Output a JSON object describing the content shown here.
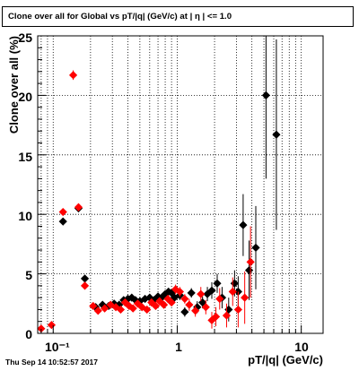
{
  "title": "Clone  over all for Global vs pT/|q| (GeV/c) at |  η | <= 1.0",
  "timestamp": "Thu Sep 14 10:52:57 2017",
  "colors": {
    "series_black": "#000000",
    "series_red": "#ff0000",
    "grid": "#000000",
    "background": "#ffffff"
  },
  "chart_data": {
    "type": "scatter",
    "title": "Clone  over all for Global vs pT/|q| (GeV/c) at |  η | <= 1.0",
    "xlabel": "pT/|q| (GeV/c)",
    "ylabel": "Clone  over all (%)",
    "xscale": "log",
    "xlim": [
      0.075,
      15
    ],
    "ylim": [
      0,
      25
    ],
    "x_tick_labels": [
      "10⁻¹",
      "1",
      "10"
    ],
    "y_tick_labels": [
      "0",
      "5",
      "10",
      "15",
      "20",
      "25"
    ],
    "grid": true,
    "series": [
      {
        "color": "#000000",
        "marker": "diamond",
        "points": [
          {
            "x": 0.12,
            "y": 9.4,
            "ey": 0.3
          },
          {
            "x": 0.16,
            "y": 10.5,
            "ey": 0.3
          },
          {
            "x": 0.18,
            "y": 4.6,
            "ey": 0.2
          },
          {
            "x": 0.22,
            "y": 2.2,
            "ey": 0.2
          },
          {
            "x": 0.25,
            "y": 2.4,
            "ey": 0.2
          },
          {
            "x": 0.28,
            "y": 2.3,
            "ey": 0.2
          },
          {
            "x": 0.31,
            "y": 2.5,
            "ey": 0.2
          },
          {
            "x": 0.34,
            "y": 2.4,
            "ey": 0.2
          },
          {
            "x": 0.37,
            "y": 2.8,
            "ey": 0.2
          },
          {
            "x": 0.4,
            "y": 2.9,
            "ey": 0.2
          },
          {
            "x": 0.43,
            "y": 3.0,
            "ey": 0.2
          },
          {
            "x": 0.46,
            "y": 2.8,
            "ey": 0.2
          },
          {
            "x": 0.5,
            "y": 2.7,
            "ey": 0.2
          },
          {
            "x": 0.55,
            "y": 2.9,
            "ey": 0.2
          },
          {
            "x": 0.6,
            "y": 3.0,
            "ey": 0.2
          },
          {
            "x": 0.65,
            "y": 2.8,
            "ey": 0.2
          },
          {
            "x": 0.7,
            "y": 3.1,
            "ey": 0.3
          },
          {
            "x": 0.75,
            "y": 3.0,
            "ey": 0.3
          },
          {
            "x": 0.8,
            "y": 3.3,
            "ey": 0.3
          },
          {
            "x": 0.85,
            "y": 3.5,
            "ey": 0.3
          },
          {
            "x": 0.9,
            "y": 3.4,
            "ey": 0.3
          },
          {
            "x": 0.95,
            "y": 3.0,
            "ey": 0.3
          },
          {
            "x": 1.05,
            "y": 3.2,
            "ey": 0.4
          },
          {
            "x": 1.15,
            "y": 1.8,
            "ey": 0.4
          },
          {
            "x": 1.3,
            "y": 3.4,
            "ey": 0.4
          },
          {
            "x": 1.45,
            "y": 2.2,
            "ey": 0.5
          },
          {
            "x": 1.6,
            "y": 2.6,
            "ey": 0.5
          },
          {
            "x": 1.75,
            "y": 3.3,
            "ey": 0.6
          },
          {
            "x": 1.9,
            "y": 3.6,
            "ey": 0.7
          },
          {
            "x": 2.1,
            "y": 4.2,
            "ey": 0.8
          },
          {
            "x": 2.3,
            "y": 3.0,
            "ey": 0.9
          },
          {
            "x": 2.6,
            "y": 2.0,
            "ey": 1.0
          },
          {
            "x": 2.9,
            "y": 4.2,
            "ey": 1.1
          },
          {
            "x": 3.1,
            "y": 3.5,
            "ey": 1.3
          },
          {
            "x": 3.4,
            "y": 9.1,
            "ey": 2.6
          },
          {
            "x": 3.8,
            "y": 5.3,
            "ey": 2.5
          },
          {
            "x": 4.3,
            "y": 7.2,
            "ey": 3.5
          },
          {
            "x": 5.2,
            "y": 20.0,
            "ey": 7.0
          },
          {
            "x": 6.3,
            "y": 16.7,
            "ey": 8.0
          }
        ]
      },
      {
        "color": "#ff0000",
        "marker": "diamond",
        "points": [
          {
            "x": 0.08,
            "y": 0.4,
            "ey": 0.1
          },
          {
            "x": 0.097,
            "y": 0.7,
            "ey": 0.1
          },
          {
            "x": 0.12,
            "y": 10.2,
            "ey": 0.3
          },
          {
            "x": 0.145,
            "y": 21.7,
            "ey": 0.4
          },
          {
            "x": 0.16,
            "y": 10.6,
            "ey": 0.3
          },
          {
            "x": 0.18,
            "y": 4.0,
            "ey": 0.2
          },
          {
            "x": 0.21,
            "y": 2.3,
            "ey": 0.2
          },
          {
            "x": 0.23,
            "y": 1.9,
            "ey": 0.2
          },
          {
            "x": 0.26,
            "y": 2.1,
            "ey": 0.2
          },
          {
            "x": 0.29,
            "y": 2.4,
            "ey": 0.2
          },
          {
            "x": 0.32,
            "y": 2.2,
            "ey": 0.2
          },
          {
            "x": 0.35,
            "y": 2.0,
            "ey": 0.2
          },
          {
            "x": 0.38,
            "y": 2.6,
            "ey": 0.2
          },
          {
            "x": 0.41,
            "y": 2.3,
            "ey": 0.2
          },
          {
            "x": 0.44,
            "y": 2.1,
            "ey": 0.2
          },
          {
            "x": 0.48,
            "y": 2.5,
            "ey": 0.2
          },
          {
            "x": 0.52,
            "y": 2.2,
            "ey": 0.2
          },
          {
            "x": 0.57,
            "y": 2.0,
            "ey": 0.3
          },
          {
            "x": 0.62,
            "y": 2.6,
            "ey": 0.3
          },
          {
            "x": 0.67,
            "y": 2.3,
            "ey": 0.3
          },
          {
            "x": 0.72,
            "y": 2.7,
            "ey": 0.3
          },
          {
            "x": 0.78,
            "y": 2.4,
            "ey": 0.3
          },
          {
            "x": 0.84,
            "y": 2.9,
            "ey": 0.3
          },
          {
            "x": 0.9,
            "y": 2.6,
            "ey": 0.3
          },
          {
            "x": 0.97,
            "y": 3.7,
            "ey": 0.4
          },
          {
            "x": 1.05,
            "y": 3.5,
            "ey": 0.4
          },
          {
            "x": 1.15,
            "y": 2.9,
            "ey": 0.4
          },
          {
            "x": 1.25,
            "y": 2.4,
            "ey": 0.5
          },
          {
            "x": 1.4,
            "y": 1.9,
            "ey": 0.5
          },
          {
            "x": 1.55,
            "y": 3.3,
            "ey": 0.6
          },
          {
            "x": 1.7,
            "y": 2.2,
            "ey": 0.6
          },
          {
            "x": 1.9,
            "y": 1.1,
            "ey": 0.7
          },
          {
            "x": 2.05,
            "y": 1.4,
            "ey": 0.8
          },
          {
            "x": 2.2,
            "y": 2.9,
            "ey": 0.9
          },
          {
            "x": 2.5,
            "y": 1.5,
            "ey": 1.0
          },
          {
            "x": 2.8,
            "y": 3.5,
            "ey": 1.2
          },
          {
            "x": 3.1,
            "y": 2.0,
            "ey": 1.5
          },
          {
            "x": 3.5,
            "y": 3.0,
            "ey": 2.2
          },
          {
            "x": 3.9,
            "y": 6.0,
            "ey": 3.0
          }
        ]
      }
    ]
  }
}
